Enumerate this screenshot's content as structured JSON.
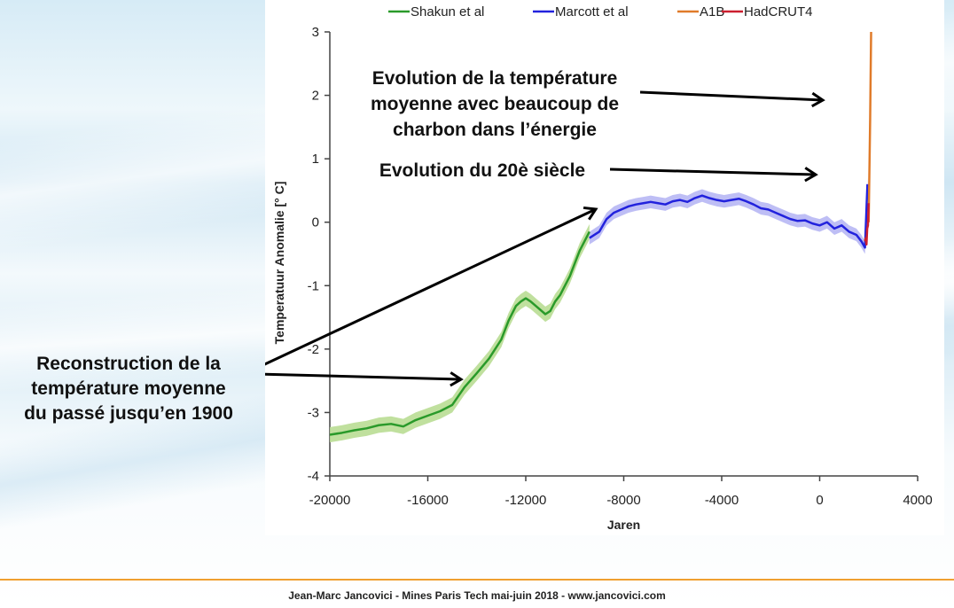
{
  "annotations": {
    "left_lines": [
      "Reconstruction de la",
      "température moyenne",
      "du passé jusqu’en 1900"
    ],
    "top_lines": [
      "Evolution de la température",
      "moyenne avec beaucoup de",
      "charbon dans l’énergie"
    ],
    "middle": "Evolution du 20è siècle"
  },
  "footer": "Jean-Marc Jancovici - Mines Paris Tech mai-juin 2018 - www.jancovici.com",
  "colors": {
    "shakun": "#2a9a2a",
    "shakun_band": "#b9dd93",
    "marcott": "#2222dd",
    "marcott_band": "#b7b7f4",
    "a1b": "#e07b2a",
    "hadcrut": "#cc1f2f",
    "accent": "#f0a030"
  },
  "chart_data": {
    "type": "line",
    "xlabel": "Jaren",
    "ylabel": "Temperatuur Anomalie [° C]",
    "xlim": [
      -20000,
      4000
    ],
    "ylim": [
      -4,
      3
    ],
    "xticks": [
      "-20000",
      "-16000",
      "-12000",
      "-8000",
      "-4000",
      "0",
      "4000"
    ],
    "yticks": [
      "3",
      "2",
      "1",
      "0",
      "-1",
      "-2",
      "-3",
      "-4"
    ],
    "legend": [
      "Shakun et al",
      "Marcott et al",
      "A1B",
      "HadCRUT4"
    ],
    "grid": false,
    "series": [
      {
        "name": "Shakun et al",
        "band": 0.12,
        "x": [
          -20000,
          -19500,
          -19000,
          -18500,
          -18000,
          -17500,
          -17000,
          -16500,
          -16000,
          -15500,
          -15000,
          -14500,
          -14000,
          -13500,
          -13000,
          -12700,
          -12400,
          -12200,
          -12000,
          -11800,
          -11500,
          -11200,
          -11000,
          -10800,
          -10600,
          -10400,
          -10200,
          -10000,
          -9800,
          -9600,
          -9400
        ],
        "values": [
          -3.35,
          -3.32,
          -3.28,
          -3.25,
          -3.2,
          -3.18,
          -3.22,
          -3.12,
          -3.05,
          -2.98,
          -2.88,
          -2.6,
          -2.38,
          -2.15,
          -1.85,
          -1.55,
          -1.32,
          -1.25,
          -1.2,
          -1.25,
          -1.35,
          -1.45,
          -1.4,
          -1.25,
          -1.15,
          -1.0,
          -0.85,
          -0.65,
          -0.45,
          -0.3,
          -0.15
        ]
      },
      {
        "name": "Marcott et al",
        "band": 0.1,
        "x": [
          -9400,
          -9000,
          -8700,
          -8400,
          -8100,
          -7800,
          -7500,
          -7200,
          -6900,
          -6600,
          -6300,
          -6000,
          -5700,
          -5400,
          -5100,
          -4800,
          -4500,
          -4200,
          -3900,
          -3600,
          -3300,
          -3000,
          -2700,
          -2400,
          -2100,
          -1800,
          -1500,
          -1200,
          -900,
          -600,
          -300,
          0,
          300,
          600,
          900,
          1200,
          1500,
          1700,
          1850,
          1900,
          1950
        ],
        "values": [
          -0.25,
          -0.15,
          0.05,
          0.15,
          0.2,
          0.25,
          0.28,
          0.3,
          0.32,
          0.3,
          0.28,
          0.33,
          0.35,
          0.32,
          0.38,
          0.42,
          0.38,
          0.35,
          0.33,
          0.35,
          0.37,
          0.33,
          0.28,
          0.22,
          0.2,
          0.15,
          0.1,
          0.05,
          0.02,
          0.03,
          -0.02,
          -0.05,
          0.0,
          -0.1,
          -0.05,
          -0.15,
          -0.2,
          -0.3,
          -0.4,
          0.1,
          0.6
        ]
      },
      {
        "name": "A1B",
        "x": [
          2000,
          2030,
          2060,
          2080,
          2100
        ],
        "values": [
          0.0,
          0.8,
          1.6,
          2.3,
          3.0
        ]
      },
      {
        "name": "HadCRUT4",
        "x": [
          1850,
          1880,
          1910,
          1940,
          1970,
          2000
        ],
        "values": [
          -0.3,
          -0.25,
          -0.35,
          -0.1,
          -0.05,
          0.3
        ]
      }
    ]
  }
}
